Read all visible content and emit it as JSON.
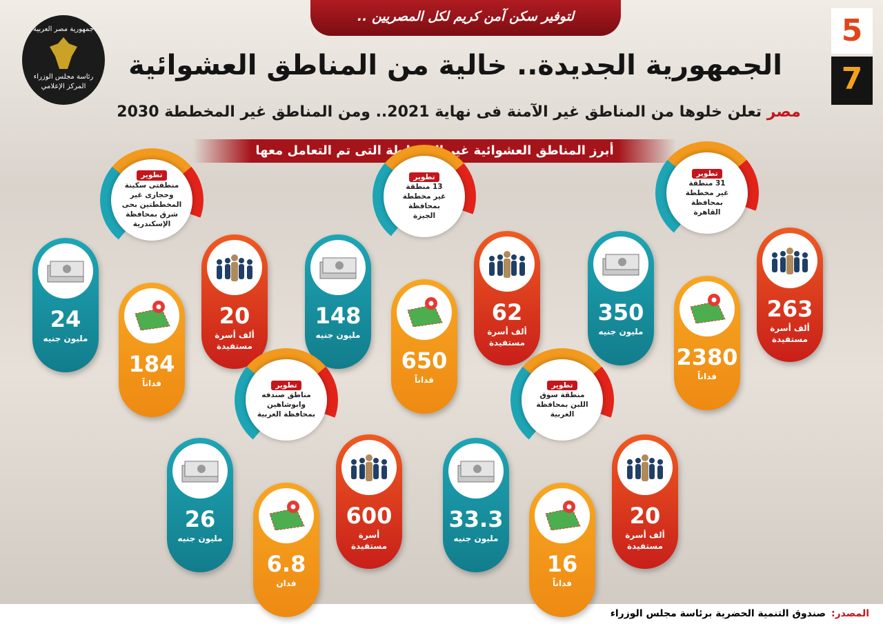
{
  "header": {
    "banner": "لتوفير سكن آمن كريم لكل المصريين ..",
    "logo_lines": [
      "جمهورية مصر العربية",
      "رئاسة مجلس الوزراء",
      "المركز الإعلامي"
    ],
    "issue": [
      "5",
      "7"
    ],
    "title": "الجمهورية الجديدة.. خالية من المناطق العشوائية",
    "subtitle_lead": "مصر",
    "subtitle": "تعلن خلوها من المناطق غير الآمنة فى نهاية 2021.. ومن المناطق غير المخططة 2030",
    "section": "أبرز المناطق العشوائية غير المخططة التى تم التعامل معها"
  },
  "groups": [
    {
      "title": [
        "تطوير",
        "31 منطقة",
        "غير مخططة",
        "بمحافظة",
        "القاهرة"
      ],
      "money": {
        "value": 350,
        "unit": [
          "مليون جنيه"
        ]
      },
      "area": {
        "value": 2380,
        "unit": [
          "فداناً"
        ]
      },
      "families": {
        "value": 263,
        "unit": [
          "ألف أسرة",
          "مستفيدة"
        ]
      }
    },
    {
      "title": [
        "تطوير",
        "13 منطقة",
        "غير مخططة",
        "بمحافظة",
        "الجيزة"
      ],
      "money": {
        "value": 148,
        "unit": [
          "مليون جنيه"
        ]
      },
      "area": {
        "value": 650,
        "unit": [
          "فداناً"
        ]
      },
      "families": {
        "value": 62,
        "unit": [
          "ألف أسرة",
          "مستفيدة"
        ]
      }
    },
    {
      "title": [
        "تطوير",
        "منطقتى سكينة",
        "وحجازى غير",
        "المخططتين بحى",
        "شرق بمحافظة",
        "الإسكندرية"
      ],
      "money": {
        "value": 24,
        "unit": [
          "مليون جنيه"
        ]
      },
      "area": {
        "value": 184,
        "unit": [
          "فداناً"
        ]
      },
      "families": {
        "value": 20,
        "unit": [
          "ألف أسرة",
          "مستفيدة"
        ]
      }
    },
    {
      "title": [
        "تطوير",
        "مناطق صندفه",
        "وابوشاهين",
        "بمحافظة الغربية"
      ],
      "money": {
        "value": 26,
        "unit": [
          "مليون جنيه"
        ]
      },
      "area": {
        "value": 6.8,
        "unit": [
          "فدان"
        ]
      },
      "families": {
        "value": 600,
        "unit": [
          "أسرة",
          "مستفيدة"
        ]
      }
    },
    {
      "title": [
        "تطوير",
        "منطقة سوق",
        "اللبن بمحافظة",
        "الغربية"
      ],
      "money": {
        "value": 33.3,
        "unit": [
          "مليون جنيه"
        ]
      },
      "area": {
        "value": 16,
        "unit": [
          "فداناً"
        ]
      },
      "families": {
        "value": 20,
        "unit": [
          "ألف أسرة",
          "مستفيدة"
        ]
      }
    }
  ],
  "footer": {
    "label": "المصدر:",
    "source": "صندوق التنمية الحضرية برئاسة مجلس الوزراء"
  }
}
